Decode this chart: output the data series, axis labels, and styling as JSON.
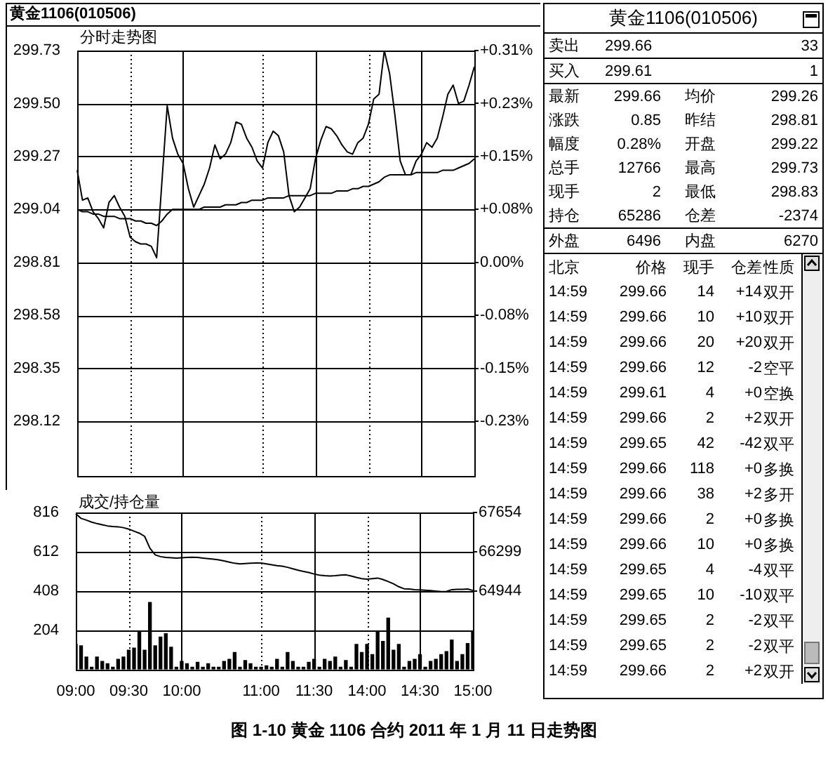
{
  "chart_data": [
    {
      "type": "line",
      "title": "黄金1106(010506)",
      "subtitle": "分时走势图",
      "annotations": [
        "图 1-10 黄金 1106 合约 2011 年 1 月 11 日走势图"
      ],
      "categories": [
        null,
        null,
        null,
        null,
        null,
        null,
        null,
        null,
        null,
        null,
        null,
        null,
        null,
        null,
        null,
        null,
        null,
        null,
        null,
        null,
        null,
        null,
        null,
        null,
        null,
        null,
        null,
        null,
        null,
        null,
        null,
        null,
        null,
        null,
        null,
        null,
        null,
        null,
        null,
        null,
        null,
        null,
        null,
        null,
        null,
        null,
        null,
        null,
        null,
        null,
        null,
        null,
        null,
        null,
        null,
        null,
        null,
        null,
        null,
        null,
        null,
        null,
        null,
        null,
        null,
        null,
        null,
        null,
        null,
        null,
        null,
        null,
        null,
        null,
        null,
        null
      ],
      "ylim": [
        297.88,
        299.73
      ],
      "yticks": [
        298.12,
        298.35,
        298.58,
        298.81,
        299.04,
        299.27,
        {
          "value": 299.5,
          "label": "299.50"
        },
        299.73
      ],
      "y2lim": [
        -0.3112,
        0.3079
      ],
      "y2ticks": [
        {
          "value": -0.2309,
          "label": "-0.23%"
        },
        {
          "value": -0.1539,
          "label": "-0.15%"
        },
        {
          "value": -0.077,
          "label": "-0.08%"
        },
        {
          "value": 0,
          "label": "0.00%"
        },
        {
          "value": 0.077,
          "label": "+0.08%"
        },
        {
          "value": 0.1539,
          "label": "+0.15%"
        },
        {
          "value": 0.2309,
          "label": "+0.23%"
        },
        {
          "value": 0.3079,
          "label": "+0.31%"
        }
      ],
      "tick_labels": "y",
      "grid": true,
      "legend": false,
      "marker": "none",
      "series": [
        {
          "color": "#000000",
          "values": [
            299.21,
            299.08,
            299.09,
            299.03,
            299.0,
            298.96,
            299.07,
            299.1,
            299.05,
            299.01,
            298.92,
            298.9,
            298.89,
            298.89,
            298.88,
            298.83,
            299.16,
            299.49,
            299.35,
            299.28,
            299.24,
            299.13,
            299.05,
            299.1,
            299.15,
            299.22,
            299.32,
            299.26,
            299.28,
            299.33,
            299.42,
            299.41,
            299.35,
            299.31,
            299.25,
            299.22,
            299.33,
            299.38,
            299.36,
            299.29,
            299.1,
            299.03,
            299.05,
            299.09,
            299.13,
            299.26,
            299.34,
            299.4,
            299.39,
            299.36,
            299.32,
            299.29,
            299.28,
            299.33,
            299.35,
            299.41,
            299.52,
            299.54,
            299.73,
            299.63,
            299.45,
            299.25,
            299.19,
            299.19,
            299.25,
            299.28,
            299.33,
            299.31,
            299.35,
            299.44,
            299.54,
            299.58,
            299.5,
            299.51,
            299.58,
            299.66
          ]
        },
        {
          "color": "#000000",
          "values": [
            299.04,
            299.03,
            299.03,
            299.02,
            299.02,
            299.01,
            299.01,
            299.01,
            299.0,
            299.0,
            299.0,
            298.99,
            298.99,
            298.98,
            298.98,
            298.97,
            298.99,
            299.02,
            299.04,
            299.04,
            299.04,
            299.04,
            299.04,
            299.04,
            299.05,
            299.05,
            299.05,
            299.05,
            299.06,
            299.06,
            299.06,
            299.07,
            299.07,
            299.08,
            299.08,
            299.08,
            299.09,
            299.09,
            299.09,
            299.09,
            299.1,
            299.1,
            299.1,
            299.1,
            299.1,
            299.11,
            299.11,
            299.11,
            299.11,
            299.12,
            299.12,
            299.12,
            299.13,
            299.13,
            299.14,
            299.14,
            299.15,
            299.16,
            299.18,
            299.19,
            299.19,
            299.19,
            299.19,
            299.19,
            299.2,
            299.2,
            299.2,
            299.2,
            299.2,
            299.21,
            299.21,
            299.21,
            299.22,
            299.23,
            299.24,
            299.26
          ]
        }
      ]
    },
    {
      "type": "bar",
      "title": "成交/持仓量",
      "categories": [
        "09:00",
        null,
        null,
        null,
        null,
        null,
        null,
        null,
        null,
        null,
        "09:30",
        null,
        null,
        null,
        null,
        null,
        null,
        null,
        null,
        null,
        "10:00",
        null,
        null,
        null,
        null,
        null,
        null,
        null,
        null,
        null,
        null,
        null,
        null,
        null,
        null,
        "11:00",
        null,
        null,
        null,
        null,
        null,
        null,
        null,
        null,
        null,
        "11:30",
        null,
        null,
        null,
        null,
        null,
        null,
        null,
        null,
        null,
        "14:00",
        null,
        null,
        null,
        null,
        null,
        null,
        null,
        null,
        null,
        "14:30",
        null,
        null,
        null,
        null,
        null,
        null,
        null,
        null,
        null,
        "15:00"
      ],
      "ylim": [
        0,
        816
      ],
      "yticks": [
        204,
        408,
        612,
        816
      ],
      "y2lim": [
        62234,
        67654
      ],
      "y2ticks": [
        64944,
        66299,
        67654
      ],
      "grid": true,
      "legend": false,
      "marker": "none",
      "series": [
        {
          "type": "bar",
          "color": "#000000",
          "values": [
            130,
            123,
            65,
            12,
            65,
            42,
            30,
            12,
            53,
            65,
            100,
            111,
            193,
            100,
            348,
            123,
            169,
            186,
            116,
            12,
            42,
            30,
            12,
            37,
            12,
            30,
            12,
            12,
            42,
            53,
            88,
            12,
            46,
            30,
            12,
            12,
            19,
            12,
            53,
            12,
            88,
            42,
            12,
            12,
            37,
            53,
            12,
            53,
            42,
            65,
            12,
            46,
            12,
            130,
            88,
            130,
            77,
            193,
            146,
            267,
            100,
            130,
            12,
            42,
            53,
            77,
            12,
            42,
            53,
            77,
            93,
            153,
            42,
            77,
            135,
            193
          ]
        },
        {
          "type": "line",
          "axis": "y2",
          "color": "#000000",
          "values": [
            67610,
            67450,
            67390,
            67320,
            67270,
            67230,
            67190,
            67170,
            67160,
            67130,
            67080,
            67010,
            66940,
            66830,
            66420,
            66190,
            66130,
            66100,
            66090,
            66080,
            66090,
            66100,
            66110,
            66100,
            66080,
            66060,
            66040,
            66020,
            65980,
            65940,
            65900,
            65880,
            65890,
            65900,
            65910,
            65910,
            65880,
            65850,
            65820,
            65800,
            65760,
            65710,
            65660,
            65620,
            65580,
            65530,
            65490,
            65470,
            65460,
            65470,
            65490,
            65500,
            65460,
            65410,
            65370,
            65350,
            65370,
            65390,
            65340,
            65270,
            65190,
            65090,
            65020,
            65010,
            64990,
            64980,
            64970,
            64960,
            64940,
            64920,
            64930,
            64990,
            65000,
            65000,
            65010,
            64960
          ]
        }
      ]
    },
    {
      "type": "other",
      "title": "黄金1106(010506)",
      "annotations": [
        "卖出",
        "299.66",
        "33",
        "买入",
        "299.61",
        "1",
        "最新",
        "299.66",
        "均价",
        "299.26",
        "涨跌",
        "0.85",
        "昨结",
        "298.81",
        "幅度",
        "0.28%",
        "开盘",
        "299.22",
        "总手",
        "12766",
        "最高",
        "299.73",
        "现手",
        "2",
        "最低",
        "298.83",
        "持仓",
        "65286",
        "仓差",
        "-2374",
        "外盘",
        "6496",
        "内盘",
        "6270",
        "北京",
        "价格",
        "现手",
        "仓差",
        "性质",
        "14:59",
        "299.66",
        "14",
        "+14",
        "双开",
        "14:59",
        "299.66",
        "10",
        "+10",
        "双开",
        "14:59",
        "299.66",
        "20",
        "+20",
        "双开",
        "14:59",
        "299.66",
        "12",
        "-2",
        "空平",
        "14:59",
        "299.61",
        "4",
        "+0",
        "空换",
        "14:59",
        "299.66",
        "2",
        "+2",
        "双开",
        "14:59",
        "299.65",
        "42",
        "-42",
        "双平",
        "14:59",
        "299.66",
        "118",
        "+0",
        "多换",
        "14:59",
        "299.66",
        "38",
        "+2",
        "多开",
        "14:59",
        "299.66",
        "2",
        "+0",
        "多换",
        "14:59",
        "299.66",
        "10",
        "+0",
        "多换",
        "14:59",
        "299.65",
        "4",
        "-4",
        "双平",
        "14:59",
        "299.65",
        "10",
        "-10",
        "双平",
        "14:59",
        "299.65",
        "2",
        "-2",
        "双平",
        "14:59",
        "299.65",
        "2",
        "-2",
        "双平",
        "14:59",
        "299.66",
        "2",
        "+2",
        "双开"
      ]
    }
  ]
}
